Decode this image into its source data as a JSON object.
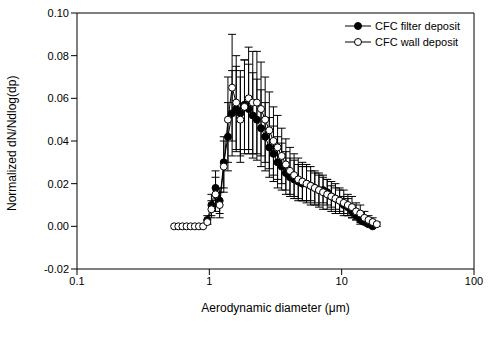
{
  "chart_data": {
    "type": "scatter",
    "x_label": "Aerodynamic diameter (μm)",
    "y_label": "Normalized dN/Ndlog(dp)",
    "log": "x",
    "xlim": [
      0.1,
      100
    ],
    "xticks": [
      0.1,
      1,
      10,
      100
    ],
    "ylim": [
      -0.02,
      0.1
    ],
    "yticks": [
      -0.02,
      {
        "value": 0,
        "label": "0.00"
      },
      0.02,
      0.04,
      0.06,
      0.08,
      {
        "value": 0.1,
        "label": "0.10"
      }
    ],
    "legend": "upper right",
    "x": [
      0.542,
      0.583,
      0.626,
      0.673,
      0.723,
      0.777,
      0.835,
      0.898,
      0.965,
      1.037,
      1.114,
      1.197,
      1.286,
      1.382,
      1.486,
      1.596,
      1.715,
      1.843,
      1.981,
      2.129,
      2.288,
      2.458,
      2.642,
      2.839,
      3.051,
      3.278,
      3.523,
      3.786,
      4.068,
      4.371,
      4.698,
      5.048,
      5.425,
      5.829,
      6.264,
      6.732,
      7.234,
      7.774,
      8.354,
      8.977,
      9.647,
      10.37,
      11.14,
      11.97,
      12.86,
      13.82,
      14.86,
      15.96,
      17.15,
      18.43
    ],
    "series": [
      {
        "name": "CFC filter deposit",
        "color": "#000000",
        "marker": "circle",
        "values": [
          null,
          null,
          null,
          null,
          null,
          null,
          null,
          null,
          0.003,
          0.01,
          0.018,
          0.012,
          0.03,
          0.042,
          0.053,
          0.055,
          0.053,
          0.057,
          0.055,
          0.052,
          0.05,
          0.046,
          0.042,
          0.037,
          0.034,
          0.03,
          0.028,
          0.025,
          0.023,
          0.022,
          0.021,
          0.02,
          0.02,
          0.019,
          0.018,
          0.017,
          0.017,
          0.016,
          0.014,
          0.013,
          0.012,
          0.01,
          0.009,
          0.007,
          0.005,
          0.003,
          0.002,
          0.001,
          0,
          null
        ],
        "errors": [
          null,
          null,
          null,
          null,
          null,
          null,
          null,
          null,
          0.002,
          0.005,
          0.008,
          0.006,
          0.012,
          0.016,
          0.02,
          0.02,
          0.02,
          0.021,
          0.021,
          0.02,
          0.019,
          0.018,
          0.016,
          0.014,
          0.013,
          0.012,
          0.011,
          0.01,
          0.009,
          0.009,
          0.008,
          0.008,
          0.008,
          0.007,
          0.007,
          0.007,
          0.006,
          0.006,
          0.005,
          0.005,
          0.005,
          0.004,
          0.004,
          0.003,
          0.002,
          0.002,
          0.001,
          0.001,
          0,
          null
        ]
      },
      {
        "name": "CFC wall deposit",
        "color": "#ffffff",
        "marker": "circle",
        "values": [
          0,
          0,
          0,
          0,
          0,
          0,
          0,
          0,
          0.002,
          0.008,
          0.015,
          0.01,
          0.028,
          0.05,
          0.065,
          0.058,
          0.05,
          0.056,
          0.06,
          0.058,
          0.058,
          0.055,
          0.05,
          0.045,
          0.04,
          0.037,
          0.033,
          0.029,
          0.026,
          0.024,
          0.022,
          0.021,
          0.02,
          0.019,
          0.018,
          0.017,
          0.016,
          0.015,
          0.014,
          0.013,
          0.012,
          0.011,
          0.01,
          0.009,
          0.007,
          0.006,
          0.004,
          0.003,
          0.002,
          0.001
        ],
        "errors": [
          0,
          0,
          0,
          0,
          0,
          0,
          0,
          0,
          0.001,
          0.004,
          0.008,
          0.006,
          0.012,
          0.02,
          0.025,
          0.022,
          0.02,
          0.022,
          0.024,
          0.024,
          0.024,
          0.022,
          0.02,
          0.018,
          0.016,
          0.015,
          0.013,
          0.012,
          0.011,
          0.01,
          0.01,
          0.009,
          0.009,
          0.009,
          0.008,
          0.008,
          0.008,
          0.007,
          0.007,
          0.007,
          0.006,
          0.006,
          0.005,
          0.005,
          0.004,
          0.004,
          0.003,
          0.002,
          0.002,
          0.001
        ]
      }
    ]
  }
}
